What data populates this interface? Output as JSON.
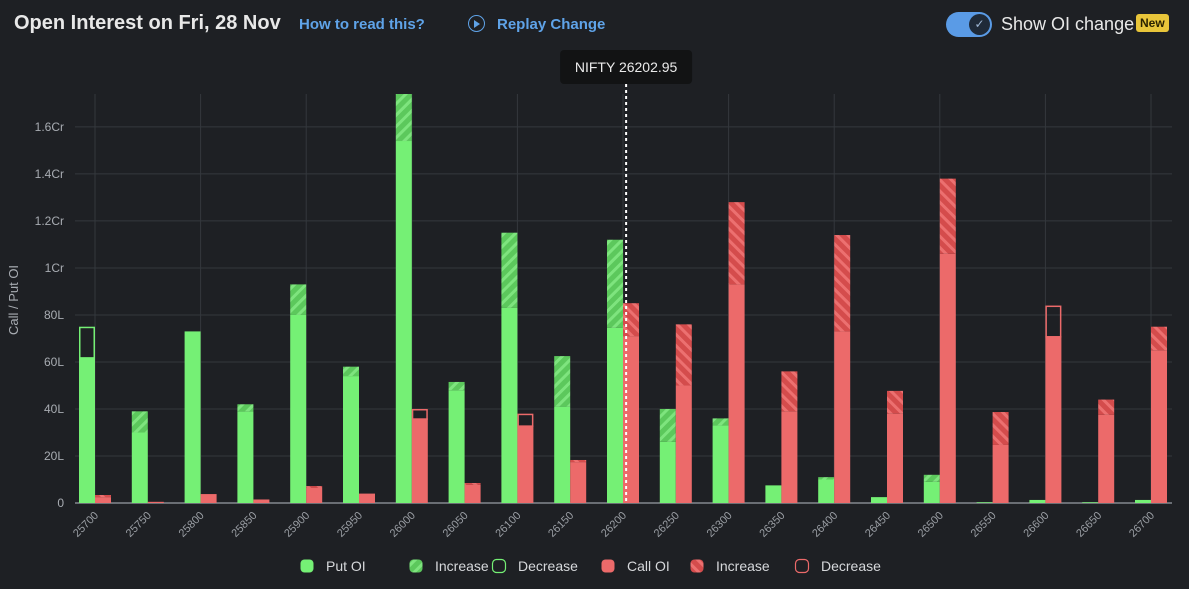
{
  "header": {
    "title": "Open Interest on Fri, 28 Nov",
    "how_to_read": "How to read this?",
    "replay": "Replay Change",
    "toggle_label": "Show OI change",
    "toggle_on": true,
    "badge": "New"
  },
  "chart_data": {
    "type": "bar",
    "ylabel": "Call / Put OI",
    "unit": "L",
    "ylim": [
      0,
      174
    ],
    "yticks": [
      0,
      20,
      40,
      60,
      80,
      100,
      120,
      140,
      160
    ],
    "ytick_labels": [
      "0",
      "20L",
      "40L",
      "60L",
      "80L",
      "1Cr",
      "1.2Cr",
      "1.4Cr",
      "1.6Cr"
    ],
    "grid": true,
    "spot": {
      "label": "NIFTY 26202.95",
      "value": 26202.95
    },
    "categories": [
      "25700",
      "25750",
      "25800",
      "25850",
      "25900",
      "25950",
      "26000",
      "26050",
      "26100",
      "26150",
      "26200",
      "26250",
      "26300",
      "26350",
      "26400",
      "26450",
      "26500",
      "26550",
      "26600",
      "26650",
      "26700"
    ],
    "series": [
      {
        "name": "Put OI",
        "color": "#75f075",
        "oi": [
          62,
          39,
          73,
          42,
          93,
          58,
          174,
          51.5,
          115,
          62.5,
          112,
          40,
          36,
          7.5,
          11,
          2.5,
          12,
          0.3,
          1.3,
          0.3,
          1.3
        ],
        "change": [
          -13,
          9,
          0,
          3,
          13,
          4,
          20,
          3.5,
          32,
          21.5,
          37.5,
          14,
          3,
          0,
          1,
          0,
          3,
          0,
          0,
          0,
          0
        ]
      },
      {
        "name": "Call OI",
        "color": "#ec6a6a",
        "oi": [
          3.4,
          0.5,
          3.8,
          1.5,
          7.2,
          4,
          36,
          8.5,
          33,
          18.3,
          85,
          76,
          128,
          56,
          114,
          47.7,
          138,
          38.7,
          71,
          44,
          75
        ],
        "change": [
          0.9,
          0,
          0,
          0,
          0.8,
          0,
          -4,
          0.8,
          -5,
          0.9,
          14,
          26,
          35,
          17,
          41,
          9.7,
          32,
          14,
          -13,
          6.5,
          10
        ]
      }
    ],
    "legend": {
      "position": "bottom",
      "items": [
        "Put OI",
        "Increase",
        "Decrease",
        "Call OI",
        "Increase",
        "Decrease"
      ]
    }
  }
}
